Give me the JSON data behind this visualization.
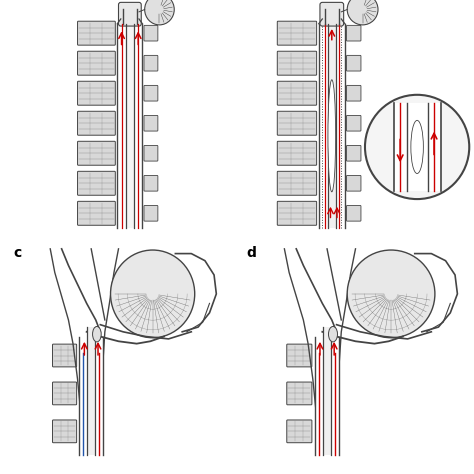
{
  "figure_size": [
    4.74,
    4.74
  ],
  "dpi": 100,
  "bg_color": "#ffffff",
  "spine_color": "#444444",
  "bone_fill": "#d8d8d8",
  "bone_edge": "#444444",
  "red_color": "#cc0000",
  "blue_color": "#2255aa",
  "gray_fill": "#bbbbbb",
  "label_fontsize": 10,
  "white": "#ffffff"
}
